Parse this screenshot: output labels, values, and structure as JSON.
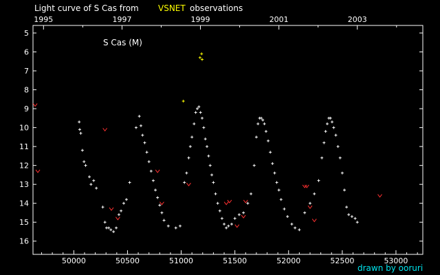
{
  "chart_data": {
    "type": "scatter",
    "title": {
      "prefix": "Light curve of S Cas from",
      "highlight": "VSNET",
      "suffix": "observations"
    },
    "star_label": "S Cas (M)",
    "credit": "drawn by ooruri",
    "x_axis": {
      "label": "",
      "range": [
        49620,
        53250
      ],
      "ticks": [
        50000,
        50500,
        51000,
        51500,
        52000,
        52500,
        53000
      ],
      "tick_labels": [
        "50000",
        "50500",
        "51000",
        "51500",
        "52000",
        "52500",
        "53000"
      ]
    },
    "top_axis": {
      "years": [
        "1995",
        "1997",
        "1999",
        "2001",
        "2003"
      ],
      "year_positions_jd": [
        49718,
        50449,
        51179,
        51910,
        52640
      ]
    },
    "y_axis": {
      "label": "",
      "range": [
        4.6,
        16.7
      ],
      "inverted": true,
      "ticks": [
        5,
        6,
        7,
        8,
        9,
        10,
        11,
        12,
        13,
        14,
        15,
        16
      ],
      "tick_labels": [
        "5",
        "6",
        "7",
        "8",
        "9",
        "10",
        "11",
        "12",
        "13",
        "14",
        "15",
        "16"
      ]
    },
    "colors": {
      "background": "#000000",
      "axes": "#ffffff",
      "text": "#ffffff",
      "highlight": "#ffff00",
      "credit": "#00e5ee",
      "visual_points": "#ffffff",
      "fainter_than": "#ff3030",
      "bright_points": "#ffff00"
    },
    "series": [
      {
        "name": "",
        "marker": "plus",
        "color": "#ffffff",
        "points": [
          [
            50050,
            9.7
          ],
          [
            50055,
            10.1
          ],
          [
            50065,
            10.3
          ],
          [
            50080,
            11.2
          ],
          [
            50095,
            11.8
          ],
          [
            50110,
            12.0
          ],
          [
            50145,
            12.6
          ],
          [
            50160,
            13.0
          ],
          [
            50185,
            12.8
          ],
          [
            50210,
            13.2
          ],
          [
            50270,
            14.2
          ],
          [
            50290,
            15.0
          ],
          [
            50305,
            15.3
          ],
          [
            50325,
            15.3
          ],
          [
            50345,
            15.4
          ],
          [
            50370,
            15.5
          ],
          [
            50395,
            15.3
          ],
          [
            50420,
            14.6
          ],
          [
            50440,
            14.4
          ],
          [
            50465,
            14.0
          ],
          [
            50490,
            13.8
          ],
          [
            50520,
            12.9
          ],
          [
            50580,
            10.0
          ],
          [
            50610,
            9.4
          ],
          [
            50625,
            9.9
          ],
          [
            50640,
            10.4
          ],
          [
            50660,
            10.8
          ],
          [
            50680,
            11.3
          ],
          [
            50700,
            11.8
          ],
          [
            50720,
            12.3
          ],
          [
            50740,
            12.8
          ],
          [
            50760,
            13.3
          ],
          [
            50780,
            13.7
          ],
          [
            50800,
            14.1
          ],
          [
            50820,
            14.5
          ],
          [
            50840,
            14.9
          ],
          [
            50880,
            15.2
          ],
          [
            50950,
            15.3
          ],
          [
            50990,
            15.2
          ],
          [
            51030,
            12.9
          ],
          [
            51050,
            12.4
          ],
          [
            51070,
            11.6
          ],
          [
            51085,
            11.0
          ],
          [
            51100,
            10.5
          ],
          [
            51120,
            9.8
          ],
          [
            51135,
            9.2
          ],
          [
            51150,
            9.0
          ],
          [
            51165,
            8.9
          ],
          [
            51180,
            9.2
          ],
          [
            51195,
            9.5
          ],
          [
            51210,
            10.0
          ],
          [
            51225,
            10.6
          ],
          [
            51240,
            11.0
          ],
          [
            51255,
            11.5
          ],
          [
            51270,
            12.0
          ],
          [
            51285,
            12.5
          ],
          [
            51300,
            12.9
          ],
          [
            51320,
            13.5
          ],
          [
            51340,
            14.0
          ],
          [
            51360,
            14.4
          ],
          [
            51380,
            14.8
          ],
          [
            51400,
            15.1
          ],
          [
            51420,
            15.3
          ],
          [
            51440,
            15.2
          ],
          [
            51470,
            15.1
          ],
          [
            51500,
            14.8
          ],
          [
            51540,
            14.6
          ],
          [
            51580,
            14.5
          ],
          [
            51620,
            14.0
          ],
          [
            51650,
            13.5
          ],
          [
            51680,
            12.0
          ],
          [
            51700,
            10.5
          ],
          [
            51715,
            9.8
          ],
          [
            51730,
            9.5
          ],
          [
            51745,
            9.5
          ],
          [
            51760,
            9.6
          ],
          [
            51775,
            9.8
          ],
          [
            51790,
            10.2
          ],
          [
            51810,
            10.7
          ],
          [
            51830,
            11.3
          ],
          [
            51850,
            11.9
          ],
          [
            51870,
            12.4
          ],
          [
            51890,
            12.9
          ],
          [
            51910,
            13.3
          ],
          [
            51930,
            13.8
          ],
          [
            51960,
            14.3
          ],
          [
            51990,
            14.7
          ],
          [
            52030,
            15.1
          ],
          [
            52060,
            15.3
          ],
          [
            52100,
            15.4
          ],
          [
            52150,
            14.5
          ],
          [
            52200,
            14.0
          ],
          [
            52240,
            13.5
          ],
          [
            52280,
            12.8
          ],
          [
            52310,
            11.6
          ],
          [
            52330,
            10.8
          ],
          [
            52345,
            10.2
          ],
          [
            52360,
            9.8
          ],
          [
            52375,
            9.5
          ],
          [
            52390,
            9.5
          ],
          [
            52405,
            9.7
          ],
          [
            52420,
            10.0
          ],
          [
            52440,
            10.4
          ],
          [
            52460,
            11.0
          ],
          [
            52480,
            11.6
          ],
          [
            52500,
            12.4
          ],
          [
            52520,
            13.3
          ],
          [
            52540,
            14.2
          ],
          [
            52560,
            14.6
          ],
          [
            52590,
            14.7
          ],
          [
            52620,
            14.8
          ],
          [
            52640,
            15.0
          ]
        ]
      },
      {
        "name": "",
        "marker": "v",
        "color": "#ff3030",
        "points": [
          [
            49640,
            8.8
          ],
          [
            49665,
            12.3
          ],
          [
            50290,
            10.1
          ],
          [
            50350,
            14.3
          ],
          [
            50410,
            14.8
          ],
          [
            50780,
            12.3
          ],
          [
            50820,
            14.0
          ],
          [
            51070,
            13.0
          ],
          [
            51420,
            14.0
          ],
          [
            51450,
            13.9
          ],
          [
            51520,
            15.2
          ],
          [
            51580,
            14.7
          ],
          [
            51600,
            13.9
          ],
          [
            52150,
            13.1
          ],
          [
            52170,
            13.1
          ],
          [
            52200,
            14.2
          ],
          [
            52240,
            14.9
          ],
          [
            52850,
            13.6
          ]
        ]
      },
      {
        "name": "",
        "marker": "plus",
        "color": "#ffff00",
        "points": [
          [
            51020,
            8.6
          ],
          [
            51175,
            6.3
          ],
          [
            51190,
            6.1
          ],
          [
            51195,
            6.4
          ]
        ]
      }
    ]
  }
}
